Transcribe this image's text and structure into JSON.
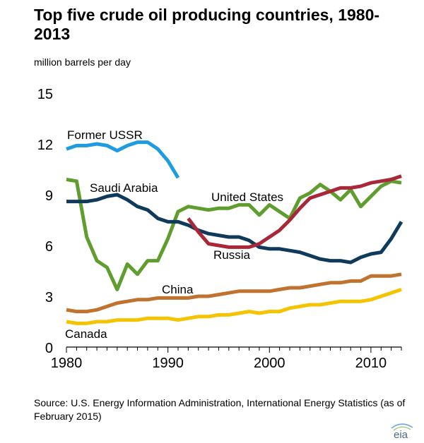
{
  "title": "Top five crude oil producing countries, 1980-2013",
  "unit_label": "million barrels per day",
  "source": "Source: U.S. Energy Information Administration, International Energy Statistics (as of February 2015)",
  "logo_text": "eia",
  "colors": {
    "axis": "#000000",
    "tick_text": "#000000"
  },
  "chart_data": {
    "type": "line",
    "title": "Top five crude oil producing countries, 1980-2013",
    "ylabel": "million barrels per day",
    "xlim": [
      1980,
      2013
    ],
    "ylim": [
      0,
      15
    ],
    "x_ticks": [
      1980,
      1990,
      2000,
      2010
    ],
    "y_ticks": [
      0,
      3,
      6,
      9,
      12,
      15
    ],
    "grid": false,
    "legend": "direct labels",
    "series": [
      {
        "name": "Former USSR",
        "color": "#1f9be0",
        "x": [
          1980,
          1981,
          1982,
          1983,
          1984,
          1985,
          1986,
          1987,
          1988,
          1989,
          1990,
          1991
        ],
        "values": [
          11.7,
          11.9,
          11.9,
          12.0,
          11.9,
          11.6,
          11.9,
          12.1,
          12.1,
          11.7,
          11.0,
          10.0
        ]
      },
      {
        "name": "Saudi Arabia",
        "color": "#0e3a5c",
        "x": [
          1980,
          1981,
          1982,
          1983,
          1984,
          1985,
          1986,
          1987,
          1988,
          1989,
          1990,
          1991,
          1992,
          1993,
          1994,
          1995,
          1996,
          1997,
          1998,
          1999,
          2000,
          2001,
          2002,
          2003,
          2004,
          2005,
          2006,
          2007,
          2008,
          2009,
          2010,
          2011,
          2012,
          2013
        ],
        "values": [
          8.6,
          8.6,
          8.6,
          8.7,
          8.9,
          9.0,
          8.7,
          8.3,
          8.1,
          7.6,
          7.4,
          7.4,
          7.2,
          6.9,
          6.7,
          6.6,
          6.5,
          6.5,
          6.3,
          5.9,
          5.8,
          5.8,
          5.7,
          5.6,
          5.4,
          5.2,
          5.1,
          5.1,
          5.0,
          5.3,
          5.5,
          5.6,
          6.4,
          7.4
        ]
      },
      {
        "name": "United States",
        "color": "#5f9e2e",
        "x": [
          1980,
          1981,
          1982,
          1983,
          1984,
          1985,
          1986,
          1987,
          1988,
          1989,
          1990,
          1991,
          1992,
          1993,
          1994,
          1995,
          1996,
          1997,
          1998,
          1999,
          2000,
          2001,
          2002,
          2003,
          2004,
          2005,
          2006,
          2007,
          2008,
          2009,
          2010,
          2011,
          2012,
          2013
        ],
        "values": [
          9.9,
          9.8,
          6.5,
          5.1,
          4.7,
          3.4,
          4.9,
          4.3,
          5.1,
          5.1,
          6.4,
          8.0,
          8.3,
          8.2,
          8.1,
          8.2,
          8.2,
          8.4,
          8.4,
          7.8,
          8.4,
          8.0,
          7.6,
          8.8,
          9.1,
          9.6,
          9.2,
          8.7,
          9.3,
          8.3,
          8.9,
          9.5,
          9.8,
          9.7
        ]
      },
      {
        "name": "Russia",
        "color": "#a8283a",
        "x": [
          1992,
          1993,
          1994,
          1995,
          1996,
          1997,
          1998,
          1999,
          2000,
          2001,
          2002,
          2003,
          2004,
          2005,
          2006,
          2007,
          2008,
          2009,
          2010,
          2011,
          2012,
          2013
        ],
        "values": [
          7.6,
          6.8,
          6.1,
          6.0,
          5.9,
          5.9,
          5.9,
          6.1,
          6.5,
          6.9,
          7.5,
          8.2,
          8.8,
          9.0,
          9.2,
          9.4,
          9.4,
          9.5,
          9.7,
          9.8,
          9.9,
          10.1
        ]
      },
      {
        "name": "China",
        "color": "#c0722f",
        "x": [
          1980,
          1981,
          1982,
          1983,
          1984,
          1985,
          1986,
          1987,
          1988,
          1989,
          1990,
          1991,
          1992,
          1993,
          1994,
          1995,
          1996,
          1997,
          1998,
          1999,
          2000,
          2001,
          2002,
          2003,
          2004,
          2005,
          2006,
          2007,
          2008,
          2009,
          2010,
          2011,
          2012,
          2013
        ],
        "values": [
          2.2,
          2.1,
          2.1,
          2.2,
          2.4,
          2.6,
          2.7,
          2.8,
          2.8,
          2.9,
          2.9,
          2.9,
          2.9,
          3.0,
          3.0,
          3.1,
          3.2,
          3.3,
          3.3,
          3.3,
          3.3,
          3.4,
          3.5,
          3.5,
          3.6,
          3.7,
          3.8,
          3.8,
          3.9,
          3.9,
          4.2,
          4.2,
          4.2,
          4.3
        ]
      },
      {
        "name": "Canada",
        "color": "#f5c400",
        "x": [
          1980,
          1981,
          1982,
          1983,
          1984,
          1985,
          1986,
          1987,
          1988,
          1989,
          1990,
          1991,
          1992,
          1993,
          1994,
          1995,
          1996,
          1997,
          1998,
          1999,
          2000,
          2001,
          2002,
          2003,
          2004,
          2005,
          2006,
          2007,
          2008,
          2009,
          2010,
          2011,
          2012,
          2013
        ],
        "values": [
          1.5,
          1.4,
          1.4,
          1.5,
          1.5,
          1.6,
          1.6,
          1.6,
          1.7,
          1.7,
          1.7,
          1.6,
          1.7,
          1.8,
          1.8,
          1.9,
          1.9,
          2.0,
          2.1,
          2.0,
          2.1,
          2.1,
          2.3,
          2.4,
          2.5,
          2.5,
          2.6,
          2.7,
          2.7,
          2.7,
          2.8,
          3.0,
          3.2,
          3.4
        ]
      }
    ]
  }
}
